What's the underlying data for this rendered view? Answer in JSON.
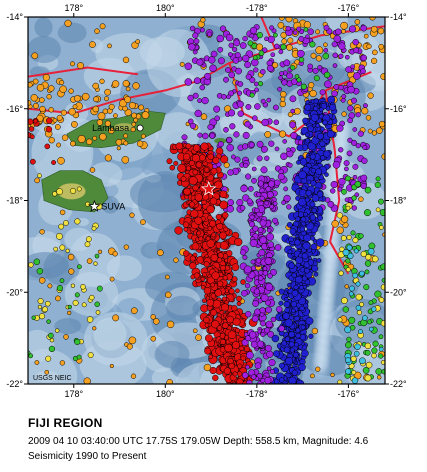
{
  "map": {
    "lon_range": [
      177.0,
      -175.2
    ],
    "lat_range": [
      -22,
      -14
    ],
    "top_tick_labels": [
      {
        "lon": 178,
        "text": "178°"
      },
      {
        "lon": 180,
        "text": "180°"
      },
      {
        "lon": -178,
        "text": "-178°"
      },
      {
        "lon": -176,
        "text": "-176°"
      }
    ],
    "bottom_tick_labels": [
      {
        "lon": 178,
        "text": "178°"
      },
      {
        "lon": 180,
        "text": "180°"
      },
      {
        "lon": -178,
        "text": "-178°"
      },
      {
        "lon": -176,
        "text": "-176°"
      }
    ],
    "left_tick_labels": [
      {
        "lat": -14,
        "text": "-14°"
      },
      {
        "lat": -16,
        "text": "-16°"
      },
      {
        "lat": -18,
        "text": "-18°"
      },
      {
        "lat": -20,
        "text": "-20°"
      },
      {
        "lat": -22,
        "text": "-22°"
      }
    ],
    "right_tick_labels": [
      {
        "lat": -14,
        "text": "-14°"
      },
      {
        "lat": -16,
        "text": "-16°"
      },
      {
        "lat": -18,
        "text": "-18°"
      },
      {
        "lat": -20,
        "text": "-20°"
      },
      {
        "lat": -22,
        "text": "-22°"
      }
    ],
    "places": [
      {
        "name": "Lambasa",
        "lon": 179.45,
        "lat": -16.42,
        "marker": "circle"
      },
      {
        "name": "SUVA",
        "lon": 178.45,
        "lat": -18.13,
        "marker": "star"
      }
    ],
    "credit": "USGS NEIC",
    "colors": {
      "ocean_deep": "#5f87b0",
      "ocean_mid": "#8fb0d0",
      "ocean_shallow": "#c4d8ea",
      "land": "#4f8a3a",
      "land_high": "#d8c86a",
      "plate_boundary": "#e8203a",
      "frame": "#000000"
    },
    "depth_colors": {
      "shallow": "#f5a020",
      "intermediate_a": "#f0e040",
      "intermediate_b": "#30c030",
      "intermediate_c": "#40c0e0",
      "deep_a": "#2020d0",
      "deep_b": "#a020e0",
      "deepest": "#e01010"
    }
  },
  "caption": {
    "title": "FIJI REGION",
    "event": "2009 04 10 03:40:00 UTC 17.75S 179.05W Depth: 558.5 km, Magnitude: 4.6",
    "period": "Seismicity 1990 to Present"
  }
}
